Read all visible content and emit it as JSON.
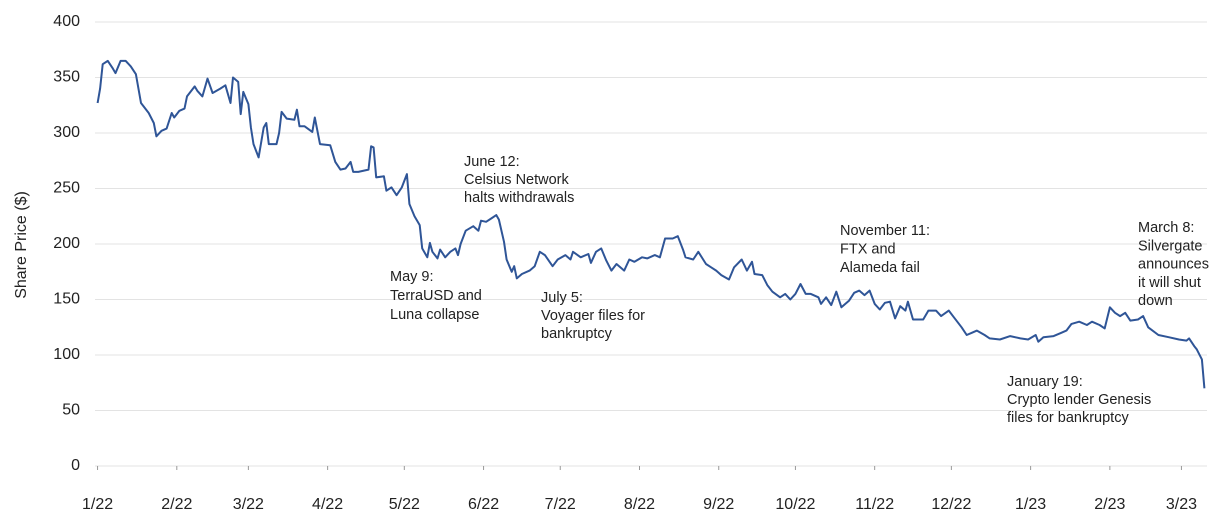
{
  "chart_data": {
    "type": "line",
    "y_label": "Share Price ($)",
    "xlim": [
      -1,
      434
    ],
    "xticks": [
      {
        "value": 0,
        "label": "1/22"
      },
      {
        "value": 31,
        "label": "2/22"
      },
      {
        "value": 59,
        "label": "3/22"
      },
      {
        "value": 90,
        "label": "4/22"
      },
      {
        "value": 120,
        "label": "5/22"
      },
      {
        "value": 151,
        "label": "6/22"
      },
      {
        "value": 181,
        "label": "7/22"
      },
      {
        "value": 212,
        "label": "8/22"
      },
      {
        "value": 243,
        "label": "9/22"
      },
      {
        "value": 273,
        "label": "10/22"
      },
      {
        "value": 304,
        "label": "11/22"
      },
      {
        "value": 334,
        "label": "12/22"
      },
      {
        "value": 365,
        "label": "1/23"
      },
      {
        "value": 396,
        "label": "2/23"
      },
      {
        "value": 424,
        "label": "3/23"
      }
    ],
    "ylim": [
      0,
      400
    ],
    "yticks": [
      0,
      50,
      100,
      150,
      200,
      250,
      300,
      350,
      400
    ],
    "grid": true,
    "series": [
      {
        "color": "#2f5597",
        "x": [
          0,
          1,
          2,
          4,
          6,
          7,
          9,
          11,
          13,
          15,
          17,
          20,
          22,
          23,
          25,
          27,
          29,
          30,
          32,
          34,
          35,
          38,
          39,
          41,
          43,
          45,
          48,
          50,
          52,
          53,
          55,
          56,
          57,
          59,
          60,
          61,
          63,
          65,
          66,
          67,
          70,
          71,
          72,
          74,
          77,
          78,
          79,
          81,
          84,
          85,
          87,
          91,
          93,
          95,
          97,
          99,
          100,
          102,
          106,
          107,
          108,
          109,
          112,
          113,
          115,
          117,
          119,
          121,
          122,
          124,
          126,
          127,
          129,
          130,
          131,
          133,
          134,
          136,
          138,
          140,
          141,
          142,
          144,
          147,
          149,
          150,
          152,
          154,
          156,
          157,
          159,
          160,
          162,
          163,
          164,
          166,
          169,
          171,
          173,
          175,
          178,
          180,
          183,
          185,
          186,
          189,
          192,
          193,
          195,
          197,
          199,
          201,
          203,
          206,
          208,
          210,
          213,
          215,
          218,
          220,
          222,
          225,
          227,
          229,
          230,
          233,
          235,
          238,
          240,
          242,
          244,
          247,
          249,
          252,
          254,
          256,
          257,
          260,
          262,
          264,
          267,
          269,
          271,
          273,
          275,
          277,
          279,
          282,
          283,
          285,
          287,
          289,
          291,
          294,
          296,
          298,
          300,
          302,
          304,
          306,
          308,
          310,
          312,
          314,
          316,
          317,
          319,
          323,
          325,
          328,
          330,
          333,
          335,
          338,
          340,
          342,
          344,
          347,
          349,
          353,
          357,
          361,
          364,
          367,
          368,
          370,
          374,
          377,
          379,
          381,
          384,
          387,
          389,
          392,
          394,
          396,
          398,
          400,
          402,
          404,
          407,
          409,
          411,
          415,
          419,
          423,
          426,
          427,
          429,
          430,
          432,
          433
        ],
        "values": [
          327,
          340,
          362,
          365,
          358,
          354,
          365,
          365,
          360,
          353,
          327,
          318,
          309,
          297,
          302,
          304,
          318,
          314,
          320,
          322,
          333,
          342,
          338,
          333,
          349,
          336,
          340,
          343,
          327,
          350,
          346,
          317,
          337,
          326,
          305,
          290,
          278,
          305,
          309,
          290,
          290,
          300,
          319,
          313,
          312,
          321,
          306,
          306,
          301,
          314,
          290,
          289,
          274,
          267,
          268,
          274,
          265,
          265,
          267,
          288,
          287,
          260,
          261,
          248,
          251,
          244,
          251,
          263,
          236,
          225,
          217,
          196,
          188,
          201,
          193,
          187,
          195,
          188,
          193,
          196,
          190,
          200,
          212,
          216,
          212,
          221,
          220,
          223,
          226,
          222,
          202,
          186,
          175,
          180,
          169,
          173,
          176,
          180,
          193,
          190,
          180,
          186,
          190,
          186,
          193,
          188,
          191,
          183,
          193,
          196,
          185,
          176,
          182,
          176,
          186,
          184,
          188,
          187,
          190,
          188,
          205,
          205,
          207,
          195,
          188,
          186,
          193,
          182,
          179,
          176,
          172,
          168,
          179,
          186,
          176,
          184,
          173,
          172,
          163,
          157,
          152,
          155,
          150,
          155,
          164,
          155,
          155,
          152,
          146,
          152,
          145,
          157,
          143,
          149,
          156,
          158,
          154,
          158,
          146,
          141,
          147,
          148,
          133,
          144,
          140,
          148,
          132,
          132,
          140,
          140,
          135,
          140,
          134,
          125,
          118,
          120,
          122,
          118,
          115,
          114,
          117,
          115,
          114,
          118,
          112,
          116,
          117,
          120,
          122,
          128,
          130,
          127,
          130,
          127,
          124,
          143,
          138,
          135,
          138,
          131,
          132,
          135,
          125,
          118,
          116,
          114,
          113,
          115,
          108,
          105,
          96,
          70
        ]
      }
    ],
    "annotations": [
      [
        "May 9:",
        "TerraUSD and",
        "Luna collapse"
      ],
      [
        "June 12:",
        "Celsius Network",
        "halts withdrawals"
      ],
      [
        "July 5:",
        "Voyager files for",
        "bankruptcy"
      ],
      [
        "November 11:",
        "FTX and",
        "Alameda fail"
      ],
      [
        "January 19:",
        "Crypto lender Genesis",
        "files for bankruptcy"
      ],
      [
        "March 8:",
        "Silvergate",
        "announces",
        "it will shut",
        "down"
      ]
    ]
  }
}
